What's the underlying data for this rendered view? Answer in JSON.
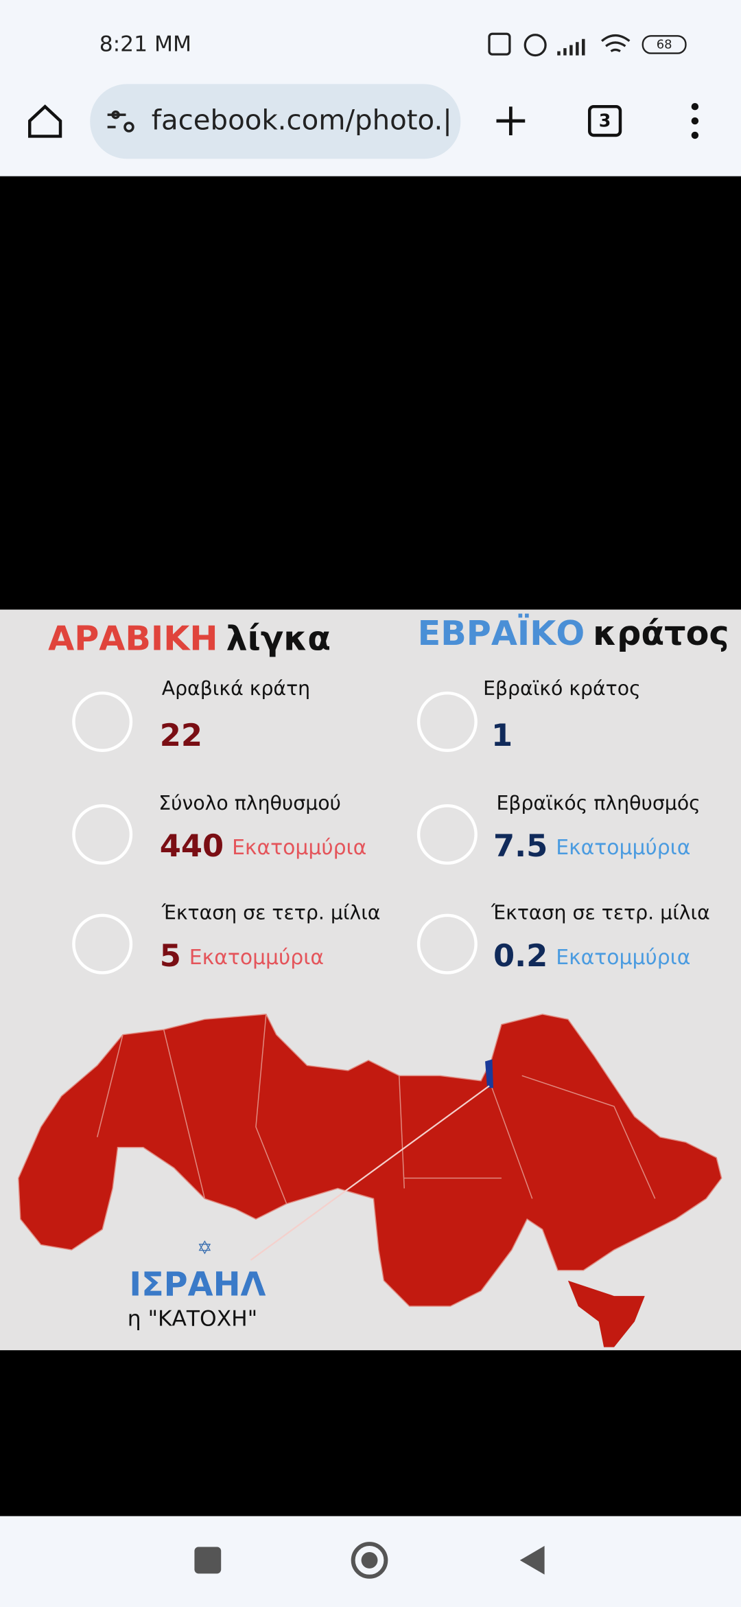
{
  "status_bar": {
    "time": "8:21 MM",
    "battery": "68"
  },
  "browser": {
    "url": "facebook.com/photo.|",
    "tab_count": "3"
  },
  "infographic": {
    "left": {
      "title_main": "ΑΡΑΒΙΚΗ",
      "title_sub": "λίγκα",
      "stats": [
        {
          "label": "Αραβικά κράτη",
          "value": "22"
        },
        {
          "label": "Σύνολο πληθυσμού",
          "value": "440",
          "unit": "Εκατομμύρια"
        },
        {
          "label": "Έκταση σε τετρ. μίλια",
          "value": "5",
          "unit": "Εκατομμύρια"
        }
      ]
    },
    "right": {
      "title_main": "ΕΒΡΑΪΚΟ",
      "title_sub": "κράτος",
      "stats": [
        {
          "label": "Εβραϊκό κράτος",
          "value": "1"
        },
        {
          "label": "Εβραϊκός πληθυσμός",
          "value": "7.5",
          "unit": "Εκατομμύρια"
        },
        {
          "label": "Έκταση σε τετρ. μίλια",
          "value": "0.2",
          "unit": "Εκατομμύρια"
        }
      ]
    },
    "map_label": "ΙΣΡΑΗΛ",
    "map_caption": "η \"ΚΑΤΟΧΗ\""
  }
}
